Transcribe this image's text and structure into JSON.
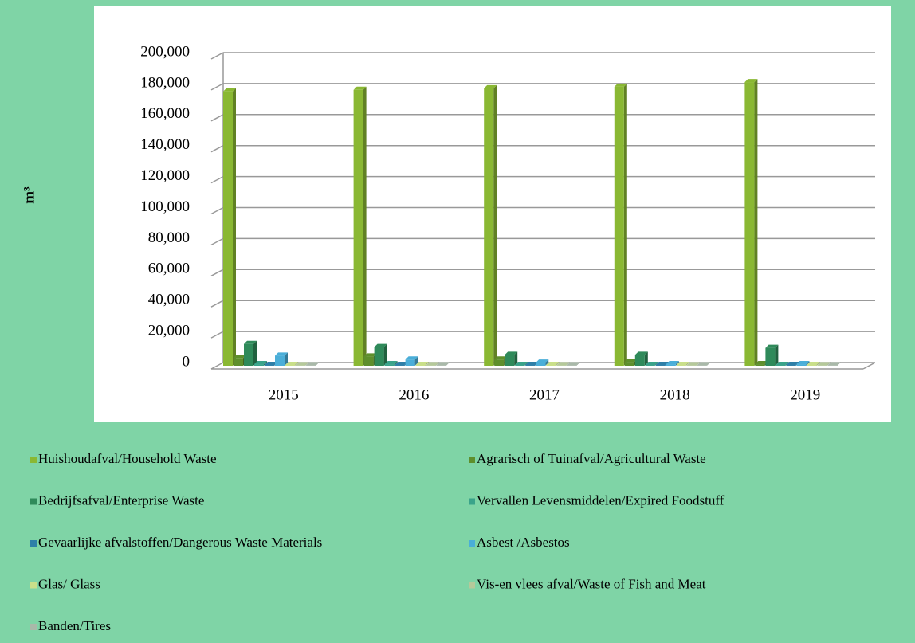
{
  "chart_data": {
    "type": "bar",
    "y_label": "m³",
    "categories": [
      "2015",
      "2016",
      "2017",
      "2018",
      "2019"
    ],
    "series": [
      {
        "name": "Huishoudafval/Household Waste",
        "color": "#8ab833",
        "values": [
          177000,
          178000,
          179000,
          180000,
          183000
        ]
      },
      {
        "name": "Agrarisch of Tuinafval/Agricultural Waste",
        "color": "#5e8f2c",
        "values": [
          5000,
          6000,
          4000,
          2500,
          1000
        ]
      },
      {
        "name": "Bedrijfsafval/Enterprise Waste",
        "color": "#2f8a5a",
        "values": [
          14000,
          12000,
          7000,
          7000,
          11500
        ]
      },
      {
        "name": "Vervallen Levensmiddelen/Expired Foodstuff",
        "color": "#3aa38a",
        "values": [
          1000,
          1000,
          500,
          500,
          500
        ]
      },
      {
        "name": "Gevaarlijke afvalstoffen/Dangerous Waste Materials",
        "color": "#2e7fa8",
        "values": [
          500,
          500,
          500,
          500,
          500
        ]
      },
      {
        "name": "Asbest /Asbestos",
        "color": "#4aaed8",
        "values": [
          6500,
          4000,
          2000,
          1000,
          1000
        ]
      },
      {
        "name": "Glas/ Glass",
        "color": "#c9df8a",
        "values": [
          500,
          500,
          500,
          500,
          500
        ]
      },
      {
        "name": "Vis-en vlees afval/Waste of Fish and Meat",
        "color": "#b5c99a",
        "values": [
          300,
          300,
          300,
          300,
          300
        ]
      },
      {
        "name": "Banden/Tires",
        "color": "#a9b9a9",
        "values": [
          300,
          300,
          300,
          300,
          300
        ]
      }
    ],
    "ylim": [
      0,
      200000
    ],
    "yticks": [
      {
        "value": 0,
        "label": "0"
      },
      {
        "value": 20000,
        "label": "20,000"
      },
      {
        "value": 40000,
        "label": "40,000"
      },
      {
        "value": 60000,
        "label": "60,000"
      },
      {
        "value": 80000,
        "label": "80,000"
      },
      {
        "value": 100000,
        "label": "100,000"
      },
      {
        "value": 120000,
        "label": "120,000"
      },
      {
        "value": 140000,
        "label": "140,000"
      },
      {
        "value": 160000,
        "label": "160,000"
      },
      {
        "value": 180000,
        "label": "180,000"
      },
      {
        "value": 200000,
        "label": "200,000"
      }
    ],
    "grid": true
  }
}
